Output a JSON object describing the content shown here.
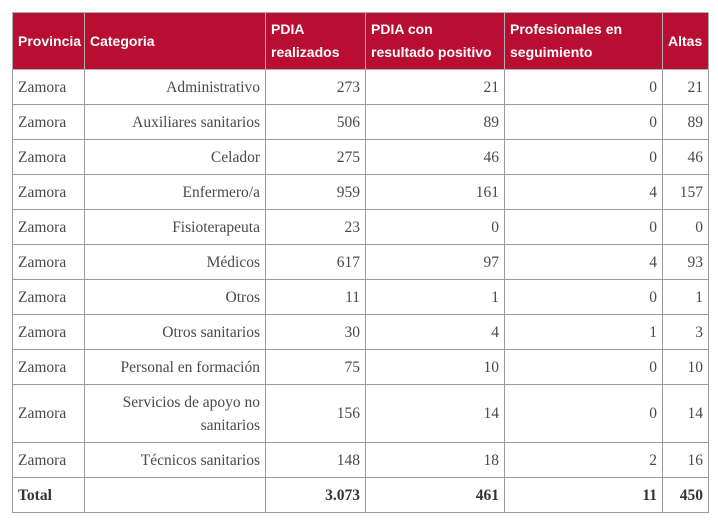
{
  "table": {
    "headers": [
      "Provincia",
      "Categoria",
      "PDIA realizados",
      "PDIA con resultado positivo",
      "Profesionales en seguimiento",
      "Altas"
    ],
    "rows": [
      [
        "Zamora",
        "Administrativo",
        "273",
        "21",
        "0",
        "21"
      ],
      [
        "Zamora",
        "Auxiliares sanitarios",
        "506",
        "89",
        "0",
        "89"
      ],
      [
        "Zamora",
        "Celador",
        "275",
        "46",
        "0",
        "46"
      ],
      [
        "Zamora",
        "Enfermero/a",
        "959",
        "161",
        "4",
        "157"
      ],
      [
        "Zamora",
        "Fisioterapeuta",
        "23",
        "0",
        "0",
        "0"
      ],
      [
        "Zamora",
        "Médicos",
        "617",
        "97",
        "4",
        "93"
      ],
      [
        "Zamora",
        "Otros",
        "11",
        "1",
        "0",
        "1"
      ],
      [
        "Zamora",
        "Otros sanitarios",
        "30",
        "4",
        "1",
        "3"
      ],
      [
        "Zamora",
        "Personal en formación",
        "75",
        "10",
        "0",
        "10"
      ],
      [
        "Zamora",
        "Servicios de apoyo no sanitarios",
        "156",
        "14",
        "0",
        "14"
      ],
      [
        "Zamora",
        "Técnicos sanitarios",
        "148",
        "18",
        "2",
        "16"
      ]
    ],
    "total": [
      "Total",
      "",
      "3.073",
      "461",
      "11",
      "450"
    ]
  },
  "colors": {
    "header_bg": "#b90e31",
    "header_text": "#ffffff"
  }
}
